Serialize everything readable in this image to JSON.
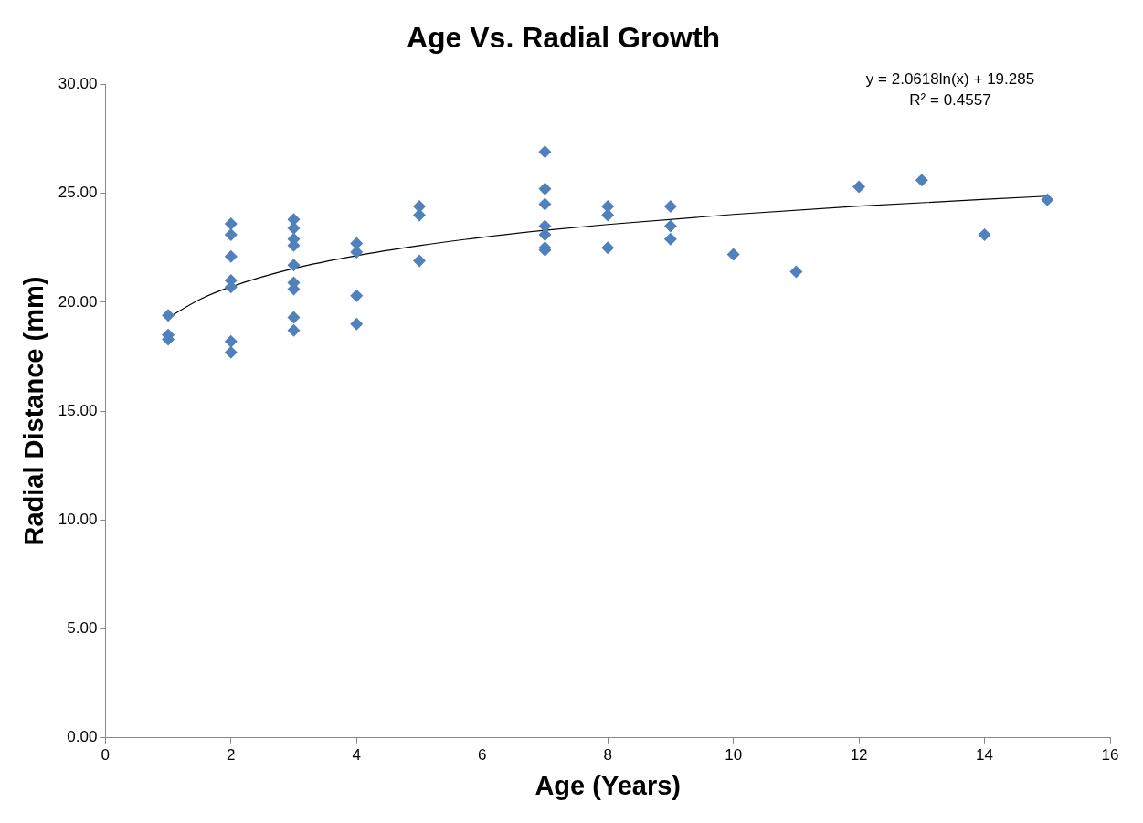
{
  "chart_data": {
    "type": "scatter",
    "title": "Age Vs. Radial Growth",
    "xlabel": "Age (Years)",
    "ylabel": "Radial Distance (mm)",
    "xlim": [
      0,
      16
    ],
    "xticks": [
      0,
      2,
      4,
      6,
      8,
      10,
      12,
      14,
      16
    ],
    "ylim": [
      0,
      30
    ],
    "yticks": [
      {
        "value": 0,
        "label": "0.00"
      },
      {
        "value": 5,
        "label": "5.00"
      },
      {
        "value": 10,
        "label": "10.00"
      },
      {
        "value": 15,
        "label": "15.00"
      },
      {
        "value": 20,
        "label": "20.00"
      },
      {
        "value": 25,
        "label": "25.00"
      },
      {
        "value": 30,
        "label": "30.00"
      }
    ],
    "grid": false,
    "legend": false,
    "marker": "diamond",
    "annotations": [
      "y = 2.0618ln(x) + 19.285",
      "R² = 0.4557"
    ],
    "series": [
      {
        "type": "scatter",
        "color": "#4f81bd",
        "x": [
          1,
          1,
          1,
          2,
          2,
          2,
          2,
          2,
          2,
          2,
          3,
          3,
          3,
          3,
          3,
          3,
          3,
          3,
          3,
          4,
          4,
          4,
          4,
          5,
          5,
          5,
          7,
          7,
          7,
          7,
          7,
          7,
          7,
          8,
          8,
          8,
          9,
          9,
          9,
          10,
          11,
          12,
          13,
          14,
          15
        ],
        "values": [
          19.4,
          18.5,
          18.3,
          23.6,
          23.1,
          22.1,
          21.0,
          20.7,
          18.2,
          17.7,
          23.8,
          23.4,
          22.9,
          22.6,
          21.7,
          20.9,
          20.6,
          19.3,
          18.7,
          22.7,
          22.3,
          20.3,
          19.0,
          24.4,
          24.0,
          21.9,
          26.9,
          25.2,
          24.5,
          23.5,
          23.1,
          22.5,
          22.4,
          24.4,
          24.0,
          22.5,
          24.4,
          23.5,
          22.9,
          22.2,
          21.4,
          25.3,
          25.6,
          23.1,
          24.7
        ]
      },
      {
        "type": "line",
        "color": "#000000",
        "marker": "none",
        "x": [
          1,
          1.5,
          2,
          3,
          4,
          5,
          6,
          7,
          8,
          10,
          12,
          15
        ],
        "values": [
          19.29,
          20.12,
          20.71,
          21.55,
          22.14,
          22.6,
          22.98,
          23.3,
          23.57,
          24.03,
          24.41,
          24.87
        ]
      }
    ]
  }
}
